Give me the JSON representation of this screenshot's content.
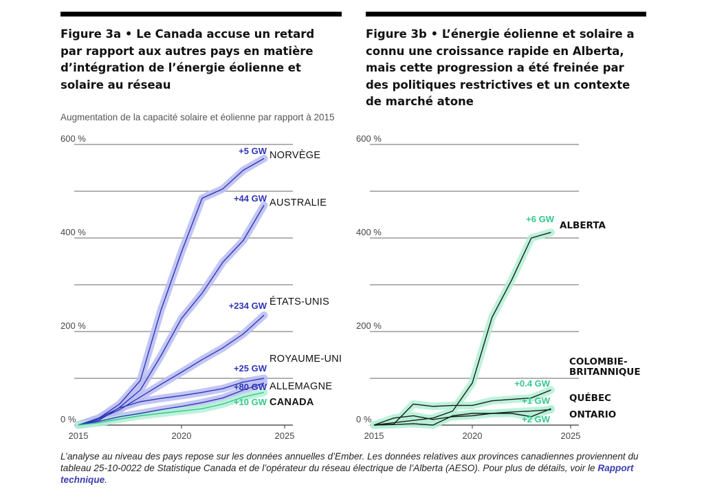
{
  "figures": {
    "a": {
      "title": "Figure 3a  •  Le Canada accuse un retard par rapport aux autres pays en matière d’intégration de l’énergie éolienne et solaire au réseau"
    },
    "b": {
      "title": "Figure 3b  •  L’énergie éolienne et solaire a connu une croissance rapide en Alberta, mais cette progression a été freinée par des politiques restrictives et un contexte de marché atone"
    }
  },
  "subtitle": "Augmentation de la capacité solaire et éolienne par rapport à 2015",
  "footnote": {
    "text": "L’analyse au niveau des pays repose sur les données annuelles d’Ember. Les données relatives aux provinces canadiennes proviennent du tableau 25-10-0022 de Statistique Canada et de l’opérateur du réseau électrique de l’Alberta (AESO). Pour plus de détails, voir le ",
    "link": "Rapport technique",
    "end": "."
  },
  "colors": {
    "blue": "#2f35b5",
    "blue_halo": "#b9bcf2",
    "green": "#34c78c",
    "green_halo": "#b2f0d5"
  },
  "chart_data": [
    {
      "type": "line",
      "title": "Figure 3a",
      "xlim": [
        2015,
        2025
      ],
      "ylim": [
        0,
        600
      ],
      "x_ticks": [
        "2015",
        "2020",
        "2025"
      ],
      "y_ticks": [
        "0 %",
        "200 %",
        "400 %",
        "600 %"
      ],
      "x": [
        2015,
        2016,
        2017,
        2018,
        2019,
        2020,
        2021,
        2022,
        2023,
        2024
      ],
      "series": [
        {
          "name": "NORVÈGE",
          "gw": "+5 GW",
          "color": "blue",
          "values": [
            0,
            15,
            45,
            95,
            245,
            370,
            485,
            505,
            545,
            570
          ]
        },
        {
          "name": "AUSTRALIE",
          "gw": "+44 GW",
          "color": "blue",
          "values": [
            0,
            10,
            38,
            75,
            148,
            228,
            282,
            348,
            395,
            470
          ]
        },
        {
          "name": "ÉTATS-UNIS",
          "gw": "+234 GW",
          "color": "blue",
          "values": [
            0,
            13,
            33,
            60,
            87,
            113,
            140,
            165,
            195,
            235
          ]
        },
        {
          "name": "ROYAUME-UNI",
          "gw": "+25 GW",
          "color": "blue",
          "values": [
            0,
            15,
            37,
            50,
            57,
            63,
            70,
            78,
            92,
            100
          ]
        },
        {
          "name": "ALLEMAGNE",
          "gw": "+80 GW",
          "color": "blue",
          "values": [
            0,
            8,
            18,
            25,
            33,
            40,
            48,
            58,
            75,
            90
          ]
        },
        {
          "name": "CANADA",
          "gw": "+10 GW",
          "color": "green",
          "values": [
            0,
            5,
            13,
            20,
            25,
            30,
            35,
            45,
            60,
            70
          ]
        }
      ]
    },
    {
      "type": "line",
      "title": "Figure 3b",
      "xlim": [
        2015,
        2025
      ],
      "ylim": [
        0,
        600
      ],
      "x_ticks": [
        "2015",
        "2020",
        "2025"
      ],
      "y_ticks": [
        "0 %",
        "200 %",
        "400 %",
        "600 %"
      ],
      "x": [
        2015,
        2016,
        2017,
        2018,
        2019,
        2020,
        2021,
        2022,
        2023,
        2024
      ],
      "series": [
        {
          "name": "ALBERTA",
          "gw": "+6 GW",
          "color": "green",
          "values": [
            0,
            5,
            10,
            15,
            30,
            90,
            230,
            310,
            400,
            412
          ]
        },
        {
          "name": "COLOMBIE-BRITANNIQUE",
          "gw": "+0.4 GW",
          "color": "green",
          "values": [
            0,
            2,
            45,
            40,
            42,
            42,
            52,
            55,
            58,
            75
          ]
        },
        {
          "name": "QUÉBEC",
          "gw": "+1 GW",
          "color": "green",
          "values": [
            0,
            15,
            20,
            12,
            18,
            20,
            25,
            28,
            30,
            33
          ]
        },
        {
          "name": "ONTARIO",
          "gw": "+2 GW",
          "color": "green",
          "values": [
            0,
            1,
            3,
            0,
            20,
            25,
            25,
            25,
            18,
            35
          ]
        }
      ]
    }
  ]
}
